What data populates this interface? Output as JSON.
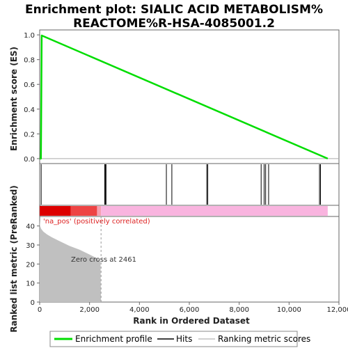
{
  "title_line1": "Enrichment plot: SIALIC ACID METABOLISM%",
  "title_line2": "REACTOME%R-HSA-4085001.2",
  "chart_data": {
    "type": "line",
    "ylabel_top": "Enrichment score (ES)",
    "ylabel_bottom": "Ranked list metric (PreRanked)",
    "xlabel": "Rank in Ordered Dataset",
    "x_ticks": [
      0,
      2000,
      4000,
      6000,
      8000,
      10000,
      12000
    ],
    "x_tick_labels": [
      "0",
      "2,000",
      "4,000",
      "6,000",
      "8,000",
      "10,000",
      "12,000"
    ],
    "xlim": [
      0,
      12000
    ],
    "es_yticks": [
      0.0,
      0.2,
      0.4,
      0.6,
      0.8,
      1.0
    ],
    "es_ytick_labels": [
      "0.0",
      "0.2",
      "0.4",
      "0.6",
      "0.8",
      "1.0"
    ],
    "es_ylim": [
      -0.04,
      1.04
    ],
    "metric_yticks": [
      0,
      10,
      20,
      30,
      40
    ],
    "metric_ytick_labels": [
      "0",
      "10",
      "20",
      "30",
      "40"
    ],
    "metric_ylim": [
      0,
      45
    ],
    "enrichment_profile": {
      "x": [
        0,
        50,
        80,
        11550
      ],
      "y": [
        0.0,
        0.0,
        0.995,
        0.0
      ],
      "color": "#00dd00"
    },
    "hits": [
      60,
      2610,
      2640,
      2660,
      5080,
      5300,
      6700,
      6740,
      8880,
      9000,
      9060,
      9180,
      11220,
      11260
    ],
    "ranking_metric": {
      "x": [
        0,
        20,
        60,
        150,
        300,
        500,
        800,
        1200,
        1600,
        2000,
        2300,
        2440,
        2461
      ],
      "y": [
        43,
        40,
        38.5,
        37,
        35.5,
        34,
        32,
        29.5,
        27.5,
        25,
        23,
        21,
        0
      ],
      "color": "#c0c0c0"
    },
    "total_ranks": 11550,
    "colorbar": [
      {
        "from": 0,
        "to": 1250,
        "color": "#dd0000"
      },
      {
        "from": 1250,
        "to": 2300,
        "color": "#ee4444"
      },
      {
        "from": 2300,
        "to": 2461,
        "color": "#f6a0b0"
      },
      {
        "from": 2461,
        "to": 11550,
        "color": "#f9b4df"
      }
    ],
    "zero_cross_rank": 2461,
    "zero_cross_label": "Zero cross at 2461",
    "positive_label": "'na_pos' (positively correlated)",
    "legend": [
      {
        "label": "Enrichment profile",
        "color": "#00dd00"
      },
      {
        "label": "Hits",
        "color": "#000000"
      },
      {
        "label": "Ranking metric scores",
        "color": "#c0c0c0"
      }
    ]
  }
}
